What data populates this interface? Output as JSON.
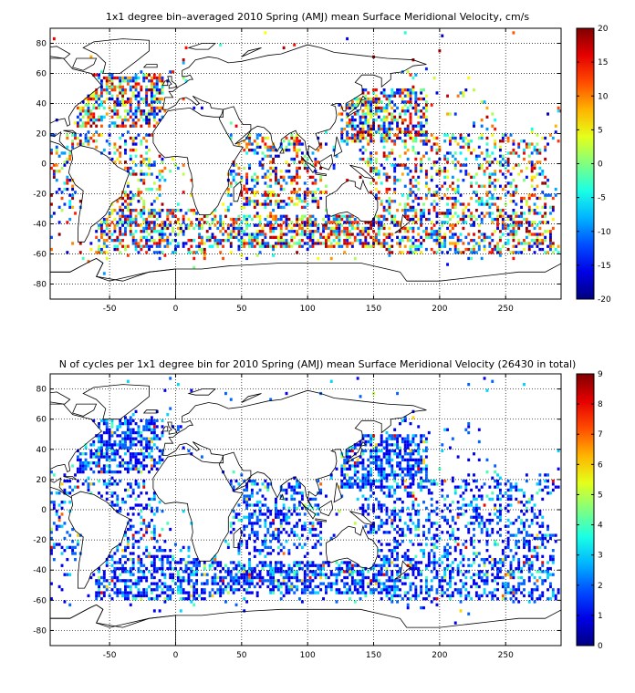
{
  "chart_data": [
    {
      "type": "heatmap",
      "title": "1x1 degree bin–averaged 2010 Spring (AMJ) mean Surface Meridional Velocity, cm/s",
      "xlim": [
        -95,
        292
      ],
      "ylim": [
        -90,
        90
      ],
      "x_ticks": [
        "-50",
        "0",
        "50",
        "100",
        "150",
        "200",
        "250"
      ],
      "y_ticks": [
        "80",
        "60",
        "40",
        "20",
        "0",
        "-20",
        "-40",
        "-60",
        "-80"
      ],
      "colorbar": {
        "min": -20,
        "max": 20,
        "colormap": "jet",
        "ticks": [
          "20",
          "15",
          "10",
          "5",
          "0",
          "-5",
          "-10",
          "-15",
          "-20"
        ]
      },
      "grid": true
    },
    {
      "type": "heatmap",
      "title": "N of cycles per 1x1 degree bin for 2010 Spring (AMJ) mean Surface Meridional Velocity (26430 in total)",
      "xlim": [
        -95,
        292
      ],
      "ylim": [
        -90,
        90
      ],
      "x_ticks": [
        "-50",
        "0",
        "50",
        "100",
        "150",
        "200",
        "250"
      ],
      "y_ticks": [
        "80",
        "60",
        "40",
        "20",
        "0",
        "-20",
        "-40",
        "-60",
        "-80"
      ],
      "colorbar": {
        "min": 0,
        "max": 9,
        "colormap": "jet",
        "ticks": [
          "9",
          "8",
          "7",
          "6",
          "5",
          "4",
          "3",
          "2",
          "1",
          "0"
        ]
      },
      "grid": true
    }
  ]
}
